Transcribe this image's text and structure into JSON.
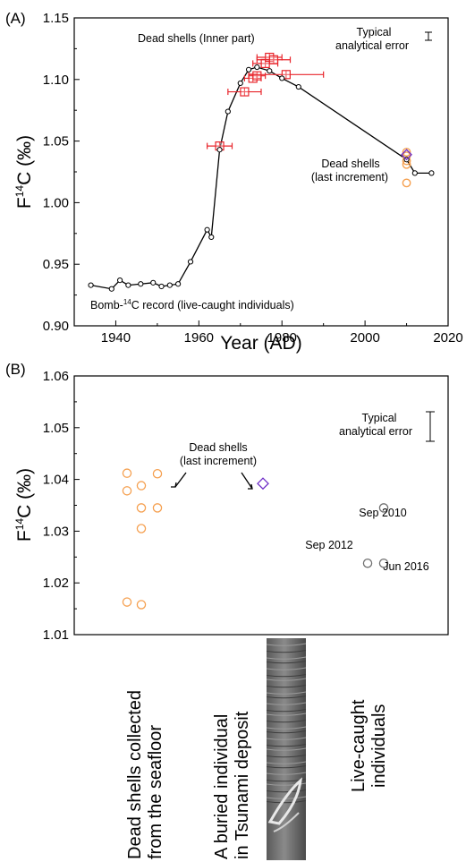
{
  "chart_data": [
    {
      "id": "A",
      "panel_label": "(A)",
      "type": "line",
      "xlabel": "Year (AD)",
      "ylabel_main": "F",
      "ylabel_sup": "14",
      "ylabel_rest": "C (‰)",
      "xlim": [
        1930,
        2020
      ],
      "ylim": [
        0.9,
        1.15
      ],
      "xticks": [
        1940,
        1960,
        1980,
        2000,
        2020
      ],
      "yticks": [
        0.9,
        0.95,
        1.0,
        1.05,
        1.1,
        1.15
      ],
      "grid": false,
      "colors": {
        "bomb_line": "#000000",
        "inner_shell": "#e8262c",
        "tsunami": "#7030c8",
        "dead_last": "#f5a050"
      },
      "annotations": {
        "inner": "Dead shells (Inner part)",
        "error_line1": "Typical",
        "error_line2": "analytical error",
        "last_line1": "Dead shells",
        "last_line2": "(last increment)",
        "bomb_pre": "Bomb-",
        "bomb_sup": "14",
        "bomb_post": "C record (live-caught individuals)"
      },
      "error_bar_half_height": 0.003,
      "series": [
        {
          "name": "Bomb-14C record (live-caught individuals)",
          "style": "line-circle",
          "x": [
            1934,
            1939,
            1941,
            1943,
            1946,
            1949,
            1951,
            1953,
            1955,
            1958,
            1962,
            1963,
            1965,
            1967,
            1970,
            1972,
            1974,
            1977,
            1980,
            1984,
            2010,
            2012,
            2016
          ],
          "y": [
            0.933,
            0.93,
            0.937,
            0.933,
            0.934,
            0.935,
            0.932,
            0.933,
            0.934,
            0.952,
            0.978,
            0.972,
            1.043,
            1.074,
            1.097,
            1.108,
            1.11,
            1.107,
            1.101,
            1.094,
            1.035,
            1.024,
            1.024
          ]
        },
        {
          "name": "Dead shells (Inner part)",
          "style": "square-errorbar",
          "x": [
            1965,
            1971,
            1973,
            1974,
            1976,
            1977,
            1978,
            1981
          ],
          "y": [
            1.046,
            1.09,
            1.101,
            1.103,
            1.113,
            1.118,
            1.116,
            1.104
          ],
          "xerr": [
            3,
            4,
            2,
            2,
            3,
            3,
            4,
            9
          ]
        },
        {
          "name": "Buried individual (Tsunami deposit)",
          "style": "diamond",
          "x": [
            2010
          ],
          "y": [
            1.039
          ]
        },
        {
          "name": "Dead shells (last increment)",
          "style": "open-circle",
          "x": [
            2010,
            2010,
            2010,
            2010,
            2010
          ],
          "y": [
            1.041,
            1.038,
            1.034,
            1.031,
            1.016
          ]
        }
      ]
    },
    {
      "id": "B",
      "panel_label": "(B)",
      "type": "scatter",
      "ylabel_main": "F",
      "ylabel_sup": "14",
      "ylabel_rest": "C (‰)",
      "ylim": [
        1.01,
        1.06
      ],
      "yticks": [
        1.01,
        1.02,
        1.03,
        1.04,
        1.05,
        1.06
      ],
      "grid": false,
      "colors": {
        "dead": "#f5a050",
        "tsunami": "#7030c8",
        "live": "#707070"
      },
      "categories": [
        {
          "line1": "Dead shells collected",
          "line2": "from the seafloor"
        },
        {
          "line1": "A buried individual",
          "line2": "in Tsunami deposit"
        },
        {
          "line1": "Live-caught",
          "line2": "individuals"
        }
      ],
      "annotations": {
        "error_line1": "Typical",
        "error_line2": "analytical error",
        "dead_line1": "Dead shells",
        "dead_line2": "(last increment)",
        "sep2010": "Sep 2010",
        "sep2012": "Sep 2012",
        "jun2016": "Jun 2016"
      },
      "error_bar_half_height": 0.003,
      "series": [
        {
          "name": "Dead shells (last increment)",
          "style": "open-circle",
          "points": [
            [
              1,
              1.0412
            ],
            [
              1,
              1.0378
            ],
            [
              1,
              1.0163
            ],
            [
              2,
              1.0388
            ],
            [
              2,
              1.0345
            ],
            [
              2,
              1.0305
            ],
            [
              2,
              1.0158
            ],
            [
              3,
              1.0411
            ],
            [
              3,
              1.0345
            ]
          ]
        },
        {
          "name": "Buried individual in Tsunami deposit",
          "style": "diamond",
          "points": [
            [
              0,
              1.0392
            ]
          ]
        },
        {
          "name": "Live-caught individuals",
          "style": "open-circle",
          "points": [
            [
              0,
              1.0345
            ],
            [
              -1,
              1.0238
            ],
            [
              0,
              1.0238
            ]
          ]
        }
      ]
    }
  ]
}
